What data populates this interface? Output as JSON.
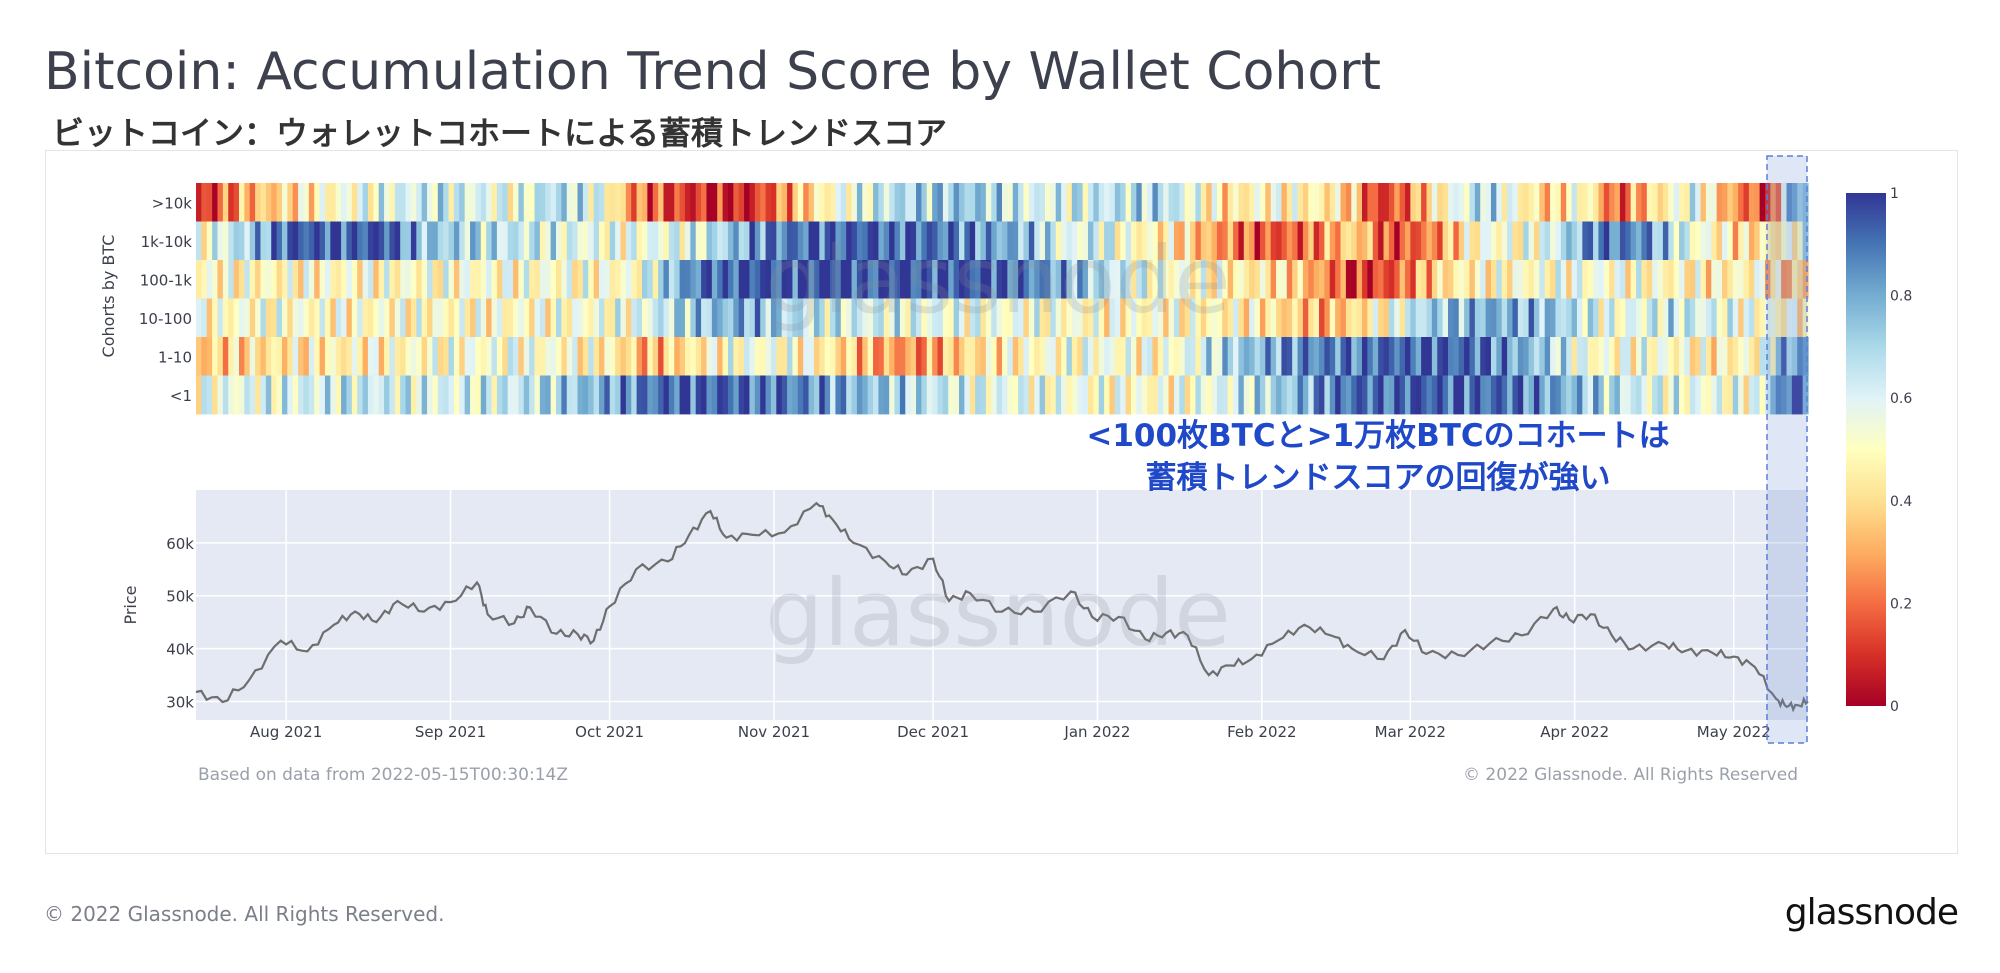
{
  "page": {
    "title": "Bitcoin: Accumulation Trend Score by Wallet Cohort",
    "subtitle": "ビットコイン：ウォレットコホートによる蓄積トレンドスコア",
    "based_on": "Based on data from 2022-05-15T00:30:14Z",
    "copyright_chart": "© 2022 Glassnode. All Rights Reserved",
    "copyright_footer": "© 2022 Glassnode. All Rights Reserved.",
    "brand": "glassnode",
    "watermark": "glassnode",
    "annotation_line1": "<100枚BTCと>1万枚BTCのコホートは",
    "annotation_line2": "蓄積トレンドスコアの回復が強い"
  },
  "chart_data": [
    {
      "type": "heatmap",
      "ylabel": "Cohorts by BTC",
      "rows": [
        ">10k",
        "1k-10k",
        "100-1k",
        "10-100",
        "1-10",
        "<1"
      ],
      "x_range": [
        "2021-07-15",
        "2022-05-15"
      ],
      "colorscale": {
        "min": 0,
        "max": 1,
        "ticks": [
          "0",
          "0.2",
          "0.4",
          "0.6",
          "0.8",
          "1"
        ],
        "colors": [
          "#a50026",
          "#d73027",
          "#f46d43",
          "#fdae61",
          "#fee090",
          "#ffffbf",
          "#e0f3f8",
          "#abd9e9",
          "#74add1",
          "#4575b4",
          "#313695"
        ]
      },
      "segments": [
        [
          [
            0.0,
            0.05
          ],
          [
            0.03,
            0.3
          ],
          [
            0.07,
            0.45
          ],
          [
            0.1,
            0.55
          ],
          [
            0.15,
            0.65
          ],
          [
            0.2,
            0.55
          ],
          [
            0.22,
            0.7
          ],
          [
            0.25,
            0.6
          ],
          [
            0.27,
            0.25
          ],
          [
            0.3,
            0.12
          ],
          [
            0.34,
            0.05
          ],
          [
            0.37,
            0.3
          ],
          [
            0.4,
            0.55
          ],
          [
            0.44,
            0.7
          ],
          [
            0.48,
            0.75
          ],
          [
            0.52,
            0.6
          ],
          [
            0.56,
            0.65
          ],
          [
            0.6,
            0.7
          ],
          [
            0.64,
            0.4
          ],
          [
            0.66,
            0.5
          ],
          [
            0.7,
            0.45
          ],
          [
            0.72,
            0.35
          ],
          [
            0.73,
            0.1
          ],
          [
            0.75,
            0.2
          ],
          [
            0.78,
            0.55
          ],
          [
            0.8,
            0.7
          ],
          [
            0.82,
            0.5
          ],
          [
            0.84,
            0.35
          ],
          [
            0.86,
            0.55
          ],
          [
            0.88,
            0.15
          ],
          [
            0.91,
            0.45
          ],
          [
            0.93,
            0.6
          ],
          [
            0.95,
            0.3
          ],
          [
            0.97,
            0.15
          ],
          [
            0.98,
            0.05
          ],
          [
            0.985,
            0.7
          ],
          [
            0.993,
            0.8
          ],
          [
            1.0,
            0.8
          ]
        ],
        [
          [
            0.0,
            0.5
          ],
          [
            0.03,
            0.7
          ],
          [
            0.06,
            0.95
          ],
          [
            0.12,
            0.95
          ],
          [
            0.14,
            0.75
          ],
          [
            0.2,
            0.65
          ],
          [
            0.26,
            0.55
          ],
          [
            0.31,
            0.6
          ],
          [
            0.35,
            0.85
          ],
          [
            0.4,
            0.95
          ],
          [
            0.46,
            0.9
          ],
          [
            0.52,
            0.75
          ],
          [
            0.54,
            0.55
          ],
          [
            0.56,
            0.65
          ],
          [
            0.58,
            0.5
          ],
          [
            0.6,
            0.45
          ],
          [
            0.63,
            0.3
          ],
          [
            0.66,
            0.15
          ],
          [
            0.69,
            0.2
          ],
          [
            0.72,
            0.4
          ],
          [
            0.74,
            0.12
          ],
          [
            0.77,
            0.25
          ],
          [
            0.8,
            0.55
          ],
          [
            0.82,
            0.5
          ],
          [
            0.84,
            0.6
          ],
          [
            0.87,
            0.9
          ],
          [
            0.9,
            0.85
          ],
          [
            0.93,
            0.55
          ],
          [
            0.96,
            0.4
          ],
          [
            0.98,
            0.45
          ],
          [
            0.985,
            0.45
          ],
          [
            0.993,
            0.55
          ],
          [
            1.0,
            0.55
          ]
        ],
        [
          [
            0.0,
            0.5
          ],
          [
            0.05,
            0.48
          ],
          [
            0.1,
            0.5
          ],
          [
            0.2,
            0.52
          ],
          [
            0.27,
            0.5
          ],
          [
            0.3,
            0.8
          ],
          [
            0.32,
            0.95
          ],
          [
            0.4,
            0.97
          ],
          [
            0.5,
            0.95
          ],
          [
            0.55,
            0.75
          ],
          [
            0.58,
            0.6
          ],
          [
            0.62,
            0.5
          ],
          [
            0.68,
            0.4
          ],
          [
            0.7,
            0.25
          ],
          [
            0.72,
            0.1
          ],
          [
            0.74,
            0.15
          ],
          [
            0.76,
            0.3
          ],
          [
            0.78,
            0.45
          ],
          [
            0.82,
            0.5
          ],
          [
            0.86,
            0.55
          ],
          [
            0.9,
            0.5
          ],
          [
            0.94,
            0.45
          ],
          [
            0.97,
            0.5
          ],
          [
            0.985,
            0.35
          ],
          [
            1.0,
            0.35
          ]
        ],
        [
          [
            0.0,
            0.5
          ],
          [
            0.05,
            0.52
          ],
          [
            0.1,
            0.5
          ],
          [
            0.2,
            0.5
          ],
          [
            0.27,
            0.55
          ],
          [
            0.3,
            0.7
          ],
          [
            0.34,
            0.8
          ],
          [
            0.38,
            0.65
          ],
          [
            0.44,
            0.6
          ],
          [
            0.5,
            0.55
          ],
          [
            0.56,
            0.5
          ],
          [
            0.6,
            0.5
          ],
          [
            0.66,
            0.45
          ],
          [
            0.7,
            0.3
          ],
          [
            0.72,
            0.4
          ],
          [
            0.74,
            0.5
          ],
          [
            0.76,
            0.7
          ],
          [
            0.8,
            0.8
          ],
          [
            0.84,
            0.75
          ],
          [
            0.88,
            0.55
          ],
          [
            0.92,
            0.65
          ],
          [
            0.96,
            0.55
          ],
          [
            0.98,
            0.5
          ],
          [
            0.985,
            0.5
          ],
          [
            1.0,
            0.5
          ]
        ],
        [
          [
            0.0,
            0.35
          ],
          [
            0.03,
            0.4
          ],
          [
            0.08,
            0.45
          ],
          [
            0.14,
            0.5
          ],
          [
            0.2,
            0.55
          ],
          [
            0.26,
            0.45
          ],
          [
            0.28,
            0.3
          ],
          [
            0.3,
            0.4
          ],
          [
            0.34,
            0.55
          ],
          [
            0.38,
            0.5
          ],
          [
            0.42,
            0.3
          ],
          [
            0.45,
            0.25
          ],
          [
            0.48,
            0.4
          ],
          [
            0.52,
            0.5
          ],
          [
            0.56,
            0.55
          ],
          [
            0.6,
            0.5
          ],
          [
            0.64,
            0.7
          ],
          [
            0.68,
            0.85
          ],
          [
            0.72,
            0.9
          ],
          [
            0.76,
            0.95
          ],
          [
            0.8,
            0.9
          ],
          [
            0.84,
            0.7
          ],
          [
            0.87,
            0.5
          ],
          [
            0.9,
            0.55
          ],
          [
            0.94,
            0.45
          ],
          [
            0.97,
            0.5
          ],
          [
            0.985,
            0.8
          ],
          [
            1.0,
            0.8
          ]
        ],
        [
          [
            0.0,
            0.55
          ],
          [
            0.05,
            0.6
          ],
          [
            0.1,
            0.65
          ],
          [
            0.16,
            0.6
          ],
          [
            0.2,
            0.65
          ],
          [
            0.24,
            0.75
          ],
          [
            0.27,
            0.85
          ],
          [
            0.3,
            0.95
          ],
          [
            0.36,
            0.9
          ],
          [
            0.42,
            0.75
          ],
          [
            0.48,
            0.6
          ],
          [
            0.54,
            0.55
          ],
          [
            0.6,
            0.5
          ],
          [
            0.64,
            0.6
          ],
          [
            0.68,
            0.75
          ],
          [
            0.71,
            0.9
          ],
          [
            0.76,
            0.95
          ],
          [
            0.82,
            0.9
          ],
          [
            0.86,
            0.75
          ],
          [
            0.9,
            0.6
          ],
          [
            0.94,
            0.55
          ],
          [
            0.97,
            0.55
          ],
          [
            0.985,
            0.9
          ],
          [
            0.993,
            0.98
          ],
          [
            1.0,
            0.98
          ]
        ]
      ]
    },
    {
      "type": "line",
      "ylabel": "Price",
      "x_ticks": [
        "Aug 2021",
        "Sep 2021",
        "Oct 2021",
        "Nov 2021",
        "Dec 2021",
        "Jan 2022",
        "Feb 2022",
        "Mar 2022",
        "Apr 2022",
        "May 2022"
      ],
      "x_tick_dates": [
        "2021-08-01",
        "2021-09-01",
        "2021-10-01",
        "2021-11-01",
        "2021-12-01",
        "2022-01-01",
        "2022-02-01",
        "2022-03-01",
        "2022-04-01",
        "2022-05-01"
      ],
      "y_ticks": [
        "30k",
        "40k",
        "50k",
        "60k"
      ],
      "y_tick_values": [
        30000,
        40000,
        50000,
        60000
      ],
      "ylim": [
        26500,
        70000
      ],
      "x_range": [
        "2021-07-15",
        "2022-05-15"
      ],
      "series": [
        {
          "values": [
            [
              "2021-07-15",
              31800
            ],
            [
              "2021-07-20",
              29900
            ],
            [
              "2021-07-25",
              34000
            ],
            [
              "2021-07-31",
              41500
            ],
            [
              "2021-08-05",
              39500
            ],
            [
              "2021-08-10",
              44500
            ],
            [
              "2021-08-14",
              47000
            ],
            [
              "2021-08-18",
              45000
            ],
            [
              "2021-08-22",
              49000
            ],
            [
              "2021-08-27",
              47000
            ],
            [
              "2021-09-01",
              48800
            ],
            [
              "2021-09-06",
              52500
            ],
            [
              "2021-09-08",
              46500
            ],
            [
              "2021-09-13",
              44800
            ],
            [
              "2021-09-16",
              47800
            ],
            [
              "2021-09-21",
              42800
            ],
            [
              "2021-09-25",
              42700
            ],
            [
              "2021-09-28",
              41500
            ],
            [
              "2021-10-01",
              48000
            ],
            [
              "2021-10-06",
              55000
            ],
            [
              "2021-10-12",
              56500
            ],
            [
              "2021-10-16",
              61500
            ],
            [
              "2021-10-20",
              66000
            ],
            [
              "2021-10-23",
              61000
            ],
            [
              "2021-10-28",
              61500
            ],
            [
              "2021-11-03",
              62000
            ],
            [
              "2021-11-09",
              67500
            ],
            [
              "2021-11-12",
              64500
            ],
            [
              "2021-11-16",
              60000
            ],
            [
              "2021-11-22",
              56500
            ],
            [
              "2021-11-26",
              54000
            ],
            [
              "2021-12-01",
              57000
            ],
            [
              "2021-12-04",
              49000
            ],
            [
              "2021-12-08",
              50500
            ],
            [
              "2021-12-14",
              47000
            ],
            [
              "2021-12-20",
              47000
            ],
            [
              "2021-12-27",
              50800
            ],
            [
              "2021-12-31",
              46000
            ],
            [
              "2022-01-05",
              46000
            ],
            [
              "2022-01-10",
              41800
            ],
            [
              "2022-01-14",
              43000
            ],
            [
              "2022-01-18",
              42500
            ],
            [
              "2022-01-22",
              35000
            ],
            [
              "2022-01-26",
              36800
            ],
            [
              "2022-01-30",
              38000
            ],
            [
              "2022-02-04",
              41500
            ],
            [
              "2022-02-09",
              44500
            ],
            [
              "2022-02-14",
              42500
            ],
            [
              "2022-02-18",
              40000
            ],
            [
              "2022-02-24",
              38000
            ],
            [
              "2022-02-28",
              43500
            ],
            [
              "2022-03-04",
              39000
            ],
            [
              "2022-03-10",
              38800
            ],
            [
              "2022-03-16",
              41000
            ],
            [
              "2022-03-22",
              42500
            ],
            [
              "2022-03-28",
              47500
            ],
            [
              "2022-03-31",
              45500
            ],
            [
              "2022-04-04",
              46500
            ],
            [
              "2022-04-08",
              42500
            ],
            [
              "2022-04-12",
              40000
            ],
            [
              "2022-04-18",
              40800
            ],
            [
              "2022-04-22",
              39600
            ],
            [
              "2022-04-27",
              39200
            ],
            [
              "2022-05-01",
              38500
            ],
            [
              "2022-05-05",
              36500
            ],
            [
              "2022-05-09",
              30500
            ],
            [
              "2022-05-11",
              29000
            ],
            [
              "2022-05-13",
              29300
            ],
            [
              "2022-05-15",
              30000
            ]
          ]
        }
      ]
    }
  ]
}
